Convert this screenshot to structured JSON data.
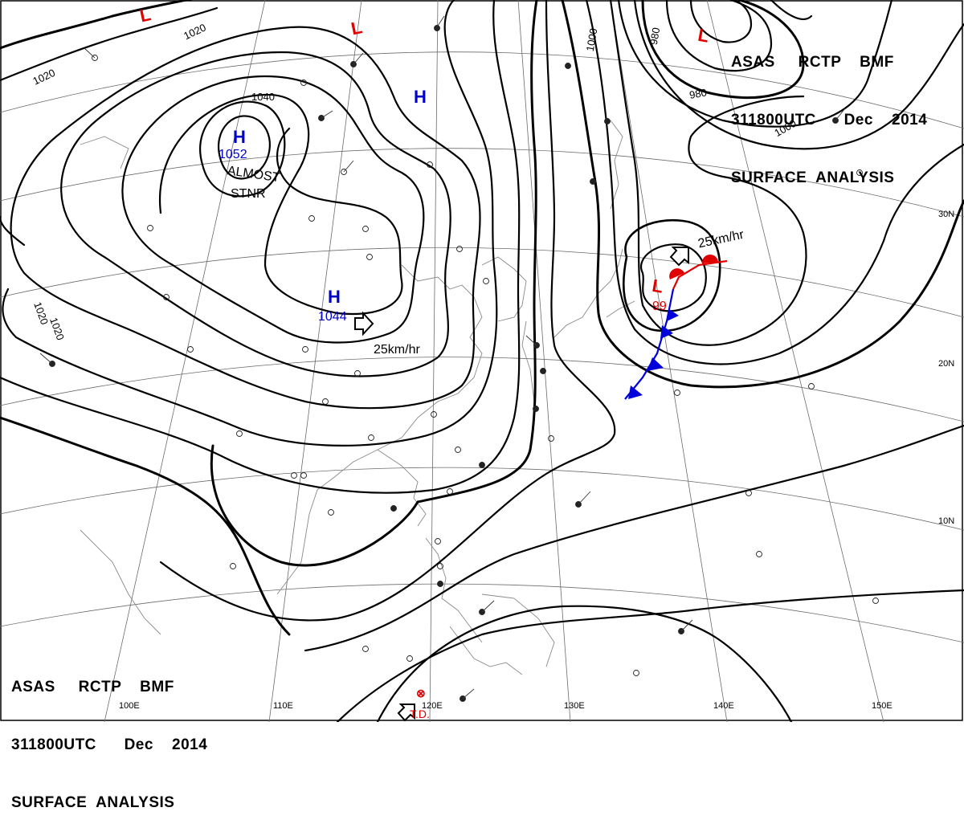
{
  "header": {
    "line1": "ASAS     RCTP    BMF",
    "line2": "311800UTC      Dec    2014",
    "line3": "SURFACE  ANALYSIS"
  },
  "pressure_centers": [
    {
      "type": "H",
      "value": "1052",
      "color": "#0000cc"
    },
    {
      "type": "H",
      "value": "1044",
      "color": "#0000cc"
    },
    {
      "type": "H",
      "value": "",
      "color": "#0000cc"
    },
    {
      "type": "L",
      "value": "",
      "color": "#e00000"
    },
    {
      "type": "L",
      "value": "",
      "color": "#e00000"
    },
    {
      "type": "L",
      "value": "",
      "color": "#e00000"
    },
    {
      "type": "L",
      "value": "99",
      "color": "#e00000"
    }
  ],
  "isobar_labels": [
    "1020",
    "1020",
    "1040",
    "1020",
    "1020",
    "1000",
    "980",
    "980",
    "1000"
  ],
  "annotations": {
    "almost": "ALMOST",
    "stnr": "STNR",
    "speed_high": "25km/hr",
    "speed_low": "25km/hr",
    "td": "T.D."
  },
  "latitude_labels": [
    "30N",
    "20N",
    "10N"
  ],
  "longitude_labels": [
    "100E",
    "110E",
    "120E",
    "130E",
    "140E",
    "150E"
  ],
  "front_colors": {
    "cold": "#0000dd",
    "warm": "#e00000"
  }
}
